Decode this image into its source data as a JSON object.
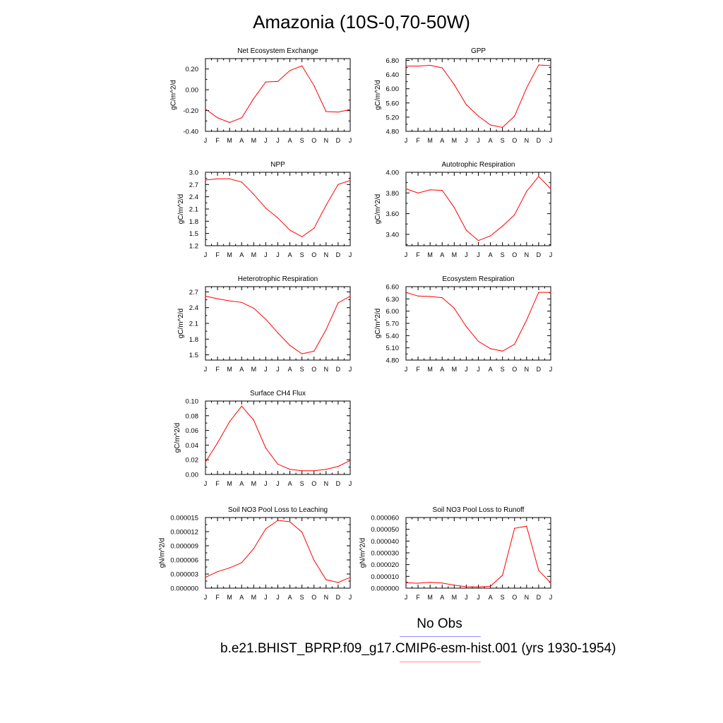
{
  "figure": {
    "title": "Amazonia (10S-0,70-50W)",
    "line_color": "#ff0000",
    "obs_line_color": "#9090ff",
    "months": [
      "J",
      "F",
      "M",
      "A",
      "M",
      "J",
      "J",
      "A",
      "S",
      "O",
      "N",
      "D",
      "J"
    ]
  },
  "legend": {
    "obs_label": "No Obs",
    "model_label": "b.e21.BHIST_BPRP.f09_g17.CMIP6-esm-hist.001 (yrs 1930-1954)"
  },
  "chart_data": [
    {
      "type": "line",
      "title": "Net Ecosystem Exchange",
      "ylabel": "gC/m^2/d",
      "ylim": [
        -0.4,
        0.3
      ],
      "yticks": [
        "0.20",
        "0.00",
        "-0.20",
        "-0.40"
      ],
      "ytick_values": [
        0.2,
        0.0,
        -0.2,
        -0.4
      ],
      "values": [
        -0.185,
        -0.27,
        -0.315,
        -0.27,
        -0.085,
        0.075,
        0.08,
        0.185,
        0.23,
        0.04,
        -0.21,
        -0.215,
        -0.19
      ]
    },
    {
      "type": "line",
      "title": "GPP",
      "ylabel": "gC/m^2/d",
      "ylim": [
        4.8,
        6.85
      ],
      "yticks": [
        "6.80",
        "6.40",
        "6.00",
        "5.60",
        "5.20",
        "4.80"
      ],
      "ytick_values": [
        6.8,
        6.4,
        6.0,
        5.6,
        5.2,
        4.8
      ],
      "values": [
        6.64,
        6.64,
        6.66,
        6.59,
        6.12,
        5.55,
        5.23,
        4.98,
        4.91,
        5.23,
        6.02,
        6.67,
        6.65
      ]
    },
    {
      "type": "line",
      "title": "NPP",
      "ylabel": "gC/m^2/d",
      "ylim": [
        1.2,
        3.0
      ],
      "yticks": [
        "3.0",
        "2.7",
        "2.4",
        "2.1",
        "1.8",
        "1.5",
        "1.2"
      ],
      "ytick_values": [
        3.0,
        2.7,
        2.4,
        2.1,
        1.8,
        1.5,
        1.2
      ],
      "values": [
        2.81,
        2.84,
        2.84,
        2.76,
        2.46,
        2.12,
        1.88,
        1.58,
        1.42,
        1.63,
        2.19,
        2.7,
        2.8
      ]
    },
    {
      "type": "line",
      "title": "Autotrophic Respiration",
      "ylabel": "gC/m^2/d",
      "ylim": [
        3.29,
        4.0
      ],
      "yticks": [
        "4.00",
        "3.80",
        "3.60",
        "3.40"
      ],
      "ytick_values": [
        4.0,
        3.8,
        3.6,
        3.4
      ],
      "values": [
        3.84,
        3.8,
        3.83,
        3.825,
        3.66,
        3.44,
        3.34,
        3.385,
        3.48,
        3.59,
        3.815,
        3.96,
        3.84
      ]
    },
    {
      "type": "line",
      "title": "Heterotrophic Respiration",
      "ylabel": "gC/m^2/d",
      "ylim": [
        1.4,
        2.8
      ],
      "yticks": [
        "2.7",
        "2.4",
        "2.1",
        "1.8",
        "1.5"
      ],
      "ytick_values": [
        2.7,
        2.4,
        2.1,
        1.8,
        1.5
      ],
      "values": [
        2.62,
        2.57,
        2.53,
        2.5,
        2.39,
        2.18,
        1.92,
        1.68,
        1.52,
        1.57,
        1.98,
        2.49,
        2.62
      ]
    },
    {
      "type": "line",
      "title": "Ecosystem Respiration",
      "ylabel": "gC/m^2/d",
      "ylim": [
        4.8,
        6.6
      ],
      "yticks": [
        "6.60",
        "6.30",
        "6.00",
        "5.70",
        "5.40",
        "5.10",
        "4.80"
      ],
      "ytick_values": [
        6.6,
        6.3,
        6.0,
        5.7,
        5.4,
        5.1,
        4.8
      ],
      "values": [
        6.46,
        6.37,
        6.36,
        6.33,
        6.07,
        5.62,
        5.26,
        5.08,
        5.02,
        5.19,
        5.78,
        6.46,
        6.46
      ]
    },
    {
      "type": "line",
      "title": "Surface CH4 Flux",
      "ylabel": "gC/m^2/d",
      "ylim": [
        0.0,
        0.1
      ],
      "yticks": [
        "0.10",
        "0.08",
        "0.06",
        "0.04",
        "0.02",
        "0.00"
      ],
      "ytick_values": [
        0.1,
        0.08,
        0.06,
        0.04,
        0.02,
        0.0
      ],
      "values": [
        0.017,
        0.043,
        0.072,
        0.093,
        0.074,
        0.036,
        0.014,
        0.007,
        0.005,
        0.005,
        0.007,
        0.011,
        0.019
      ]
    },
    {
      "type": "line",
      "title": "Soil NO3 Pool Loss to Leaching",
      "ylabel": "gN/m^2/d",
      "ylim": [
        0.0,
        1.5e-05
      ],
      "yticks": [
        "0.000015",
        "0.000012",
        "0.000009",
        "0.000006",
        "0.000003",
        "0.000000"
      ],
      "ytick_values": [
        1.5e-05,
        1.2e-05,
        9e-06,
        6e-06,
        3e-06,
        0.0
      ],
      "values": [
        2.3e-06,
        3.5e-06,
        4.3e-06,
        5.4e-06,
        8.4e-06,
        1.26e-05,
        1.44e-05,
        1.41e-05,
        1.19e-05,
        5.9e-06,
        1.8e-06,
        1.2e-06,
        2.3e-06
      ]
    },
    {
      "type": "line",
      "title": "Soil NO3 Pool Loss to Runoff",
      "ylabel": "gN/m^2/d",
      "ylim": [
        0.0,
        6e-05
      ],
      "yticks": [
        "0.000060",
        "0.000050",
        "0.000040",
        "0.000030",
        "0.000020",
        "0.000010",
        "0.000000"
      ],
      "ytick_values": [
        6e-05,
        5e-05,
        4e-05,
        3e-05,
        2e-05,
        1e-05,
        0.0
      ],
      "values": [
        4.5e-06,
        4.2e-06,
        4.9e-06,
        4.4e-06,
        2.5e-06,
        1.2e-06,
        1e-06,
        1.6e-06,
        1.09e-05,
        5.08e-05,
        5.27e-05,
        1.51e-05,
        4.5e-06
      ]
    }
  ]
}
